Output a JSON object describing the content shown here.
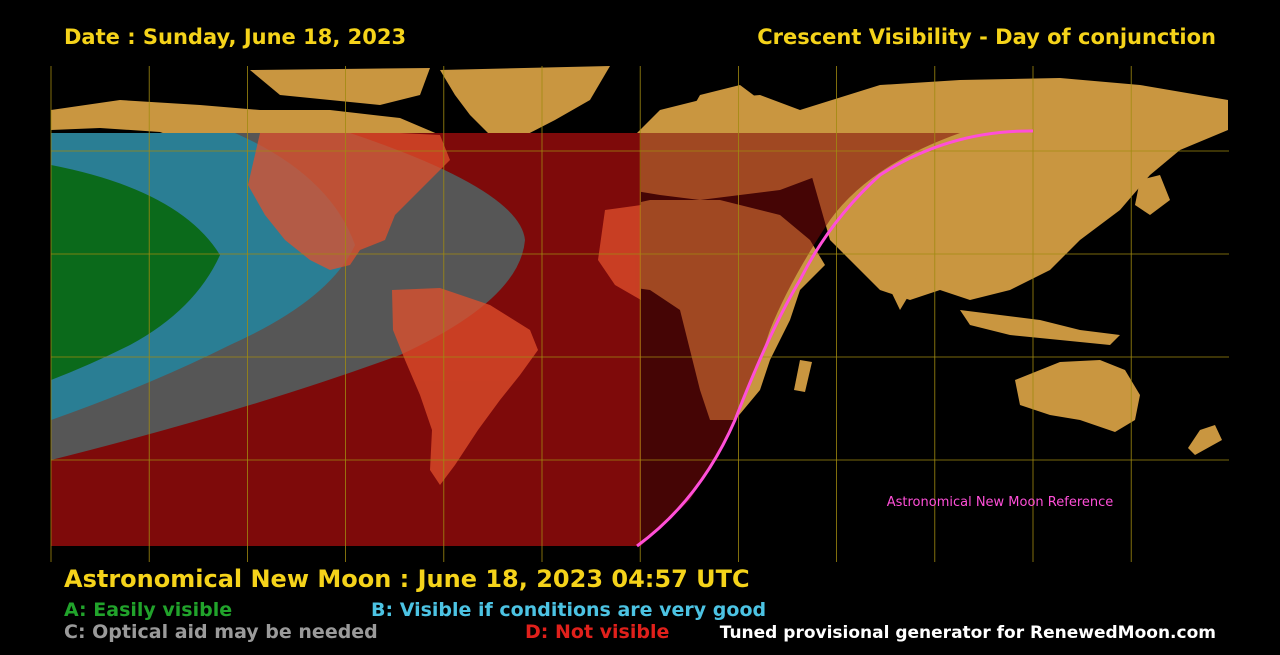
{
  "header": {
    "date": "Date : Sunday, June 18, 2023",
    "title": "Crescent Visibility - Day of conjunction"
  },
  "map": {
    "reference_label": "Astronomical New Moon Reference",
    "colors": {
      "zone_a": "#0b6a1b",
      "zone_b": "#2a7e94",
      "zone_c": "#565656",
      "zone_d": "#7e0a0a",
      "land": "#c99640",
      "land_in_d": "#e2502c",
      "grid": "#a08a10",
      "reference_line": "#ff4fd8"
    }
  },
  "footer": {
    "new_moon": "Astronomical New Moon : June 18, 2023 04:57 UTC",
    "legend": {
      "a": "A: Easily visible",
      "b": "B: Visible if conditions are very good",
      "c": "C: Optical aid may be needed",
      "d": "D: Not visible"
    },
    "credit": "Tuned provisional generator for RenewedMoon.com"
  }
}
